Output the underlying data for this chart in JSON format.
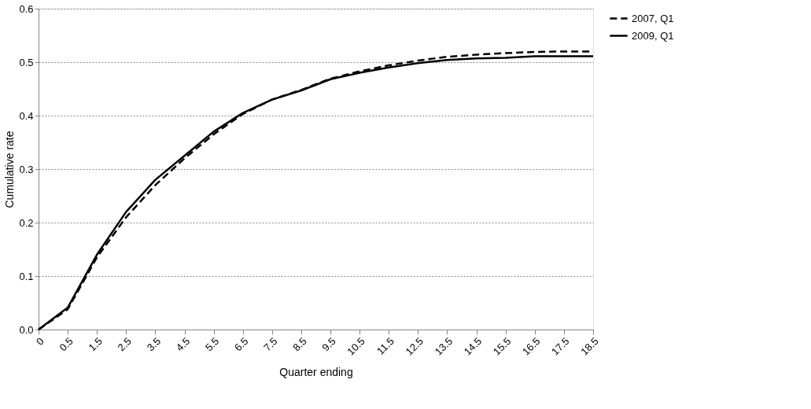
{
  "chart_data": {
    "type": "line",
    "xlabel": "Quarter ending",
    "ylabel": "Cumulative rate",
    "categories": [
      "0",
      "0.5",
      "1.5",
      "2.5",
      "3.5",
      "4.5",
      "5.5",
      "6.5",
      "7.5",
      "8.5",
      "9.5",
      "10.5",
      "11.5",
      "12.5",
      "13.5",
      "14.5",
      "15.5",
      "16.5",
      "17.5",
      "18.5"
    ],
    "series": [
      {
        "name": "2007, Q1",
        "color": "#000000",
        "line_style": "dashed",
        "values": [
          0,
          0.038,
          0.135,
          0.21,
          0.27,
          0.32,
          0.365,
          0.403,
          0.43,
          0.448,
          0.469,
          0.483,
          0.494,
          0.503,
          0.51,
          0.514,
          0.517,
          0.519,
          0.52,
          0.52
        ]
      },
      {
        "name": "2009, Q1",
        "color": "#000000",
        "line_style": "solid",
        "values": [
          0,
          0.041,
          0.14,
          0.22,
          0.28,
          0.325,
          0.37,
          0.405,
          0.43,
          0.447,
          0.468,
          0.48,
          0.49,
          0.498,
          0.504,
          0.507,
          0.508,
          0.511,
          0.511,
          0.511
        ]
      }
    ],
    "ylim": [
      0,
      0.6
    ],
    "yticks": [
      {
        "value": 0,
        "label": "0.0"
      },
      0.1,
      0.2,
      0.3,
      0.4,
      0.5,
      0.6
    ],
    "grid": "y",
    "legend": "right"
  }
}
